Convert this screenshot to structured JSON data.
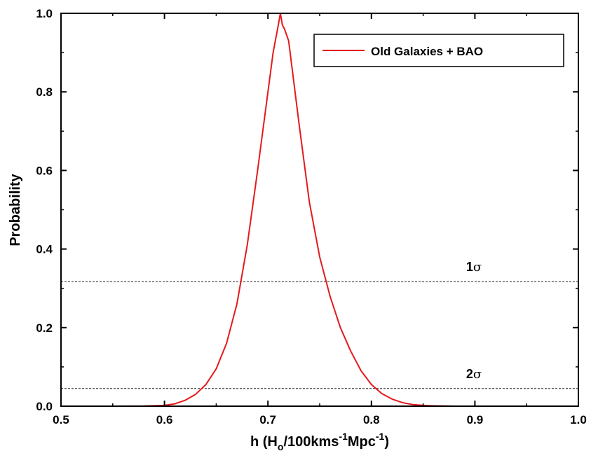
{
  "chart_data": {
    "type": "line",
    "title": "",
    "xlabel": {
      "main": "h (H",
      "sub": "o",
      "mid": "/100kms",
      "sup1": "-1",
      "mid2": "Mpc",
      "sup2": "-1",
      "end": ")"
    },
    "ylabel": "Probability",
    "xlim": [
      0.5,
      1.0
    ],
    "ylim": [
      0.0,
      1.0
    ],
    "xticks": [
      "0.5",
      "0.6",
      "0.7",
      "0.8",
      "0.9",
      "1.0"
    ],
    "xtick_values": [
      0.5,
      0.6,
      0.7,
      0.8,
      0.9,
      1.0
    ],
    "yticks": [
      "0.0",
      "0.2",
      "0.4",
      "0.6",
      "0.8",
      "1.0"
    ],
    "ytick_values": [
      0.0,
      0.2,
      0.4,
      0.6,
      0.8,
      1.0
    ],
    "grid": false,
    "legend_position": "top-right",
    "series": [
      {
        "name": "Old Galaxies + BAO",
        "color": "#e41a1c",
        "x": [
          0.5,
          0.55,
          0.58,
          0.6,
          0.61,
          0.62,
          0.63,
          0.64,
          0.65,
          0.66,
          0.67,
          0.68,
          0.69,
          0.7,
          0.705,
          0.71,
          0.712,
          0.714,
          0.716,
          0.72,
          0.73,
          0.74,
          0.75,
          0.76,
          0.77,
          0.78,
          0.79,
          0.8,
          0.81,
          0.82,
          0.83,
          0.84,
          0.85,
          0.86,
          0.88,
          0.9,
          1.0
        ],
        "y": [
          0.0,
          0.0,
          0.0005,
          0.002,
          0.006,
          0.015,
          0.03,
          0.055,
          0.095,
          0.16,
          0.26,
          0.41,
          0.6,
          0.8,
          0.9,
          0.97,
          1.0,
          0.97,
          0.96,
          0.93,
          0.72,
          0.52,
          0.38,
          0.28,
          0.2,
          0.14,
          0.09,
          0.055,
          0.032,
          0.018,
          0.009,
          0.004,
          0.002,
          0.001,
          0.0,
          0.0,
          0.0
        ]
      }
    ],
    "reference_lines": [
      {
        "label_main": "1",
        "label_symbol": "σ",
        "y": 0.317
      },
      {
        "label_main": "2",
        "label_symbol": "σ",
        "y": 0.045
      }
    ]
  }
}
